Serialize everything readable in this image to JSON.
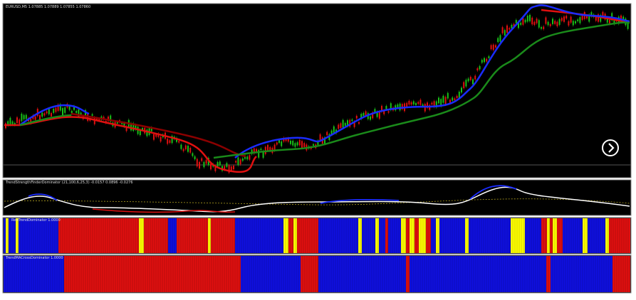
{
  "main_chart": {
    "label": "EURUSD,M5 1.07885 1.07889 1.07855 1.07860"
  },
  "indicators": [
    {
      "label": "TrendStrengthFinderDominator (21,100,6,25,3) -0.0157 0.0896 -0.0276"
    },
    {
      "label": "RedTrendDominator 1.0000"
    },
    {
      "label": "TrendMACrossDominator 1.0000"
    }
  ]
}
